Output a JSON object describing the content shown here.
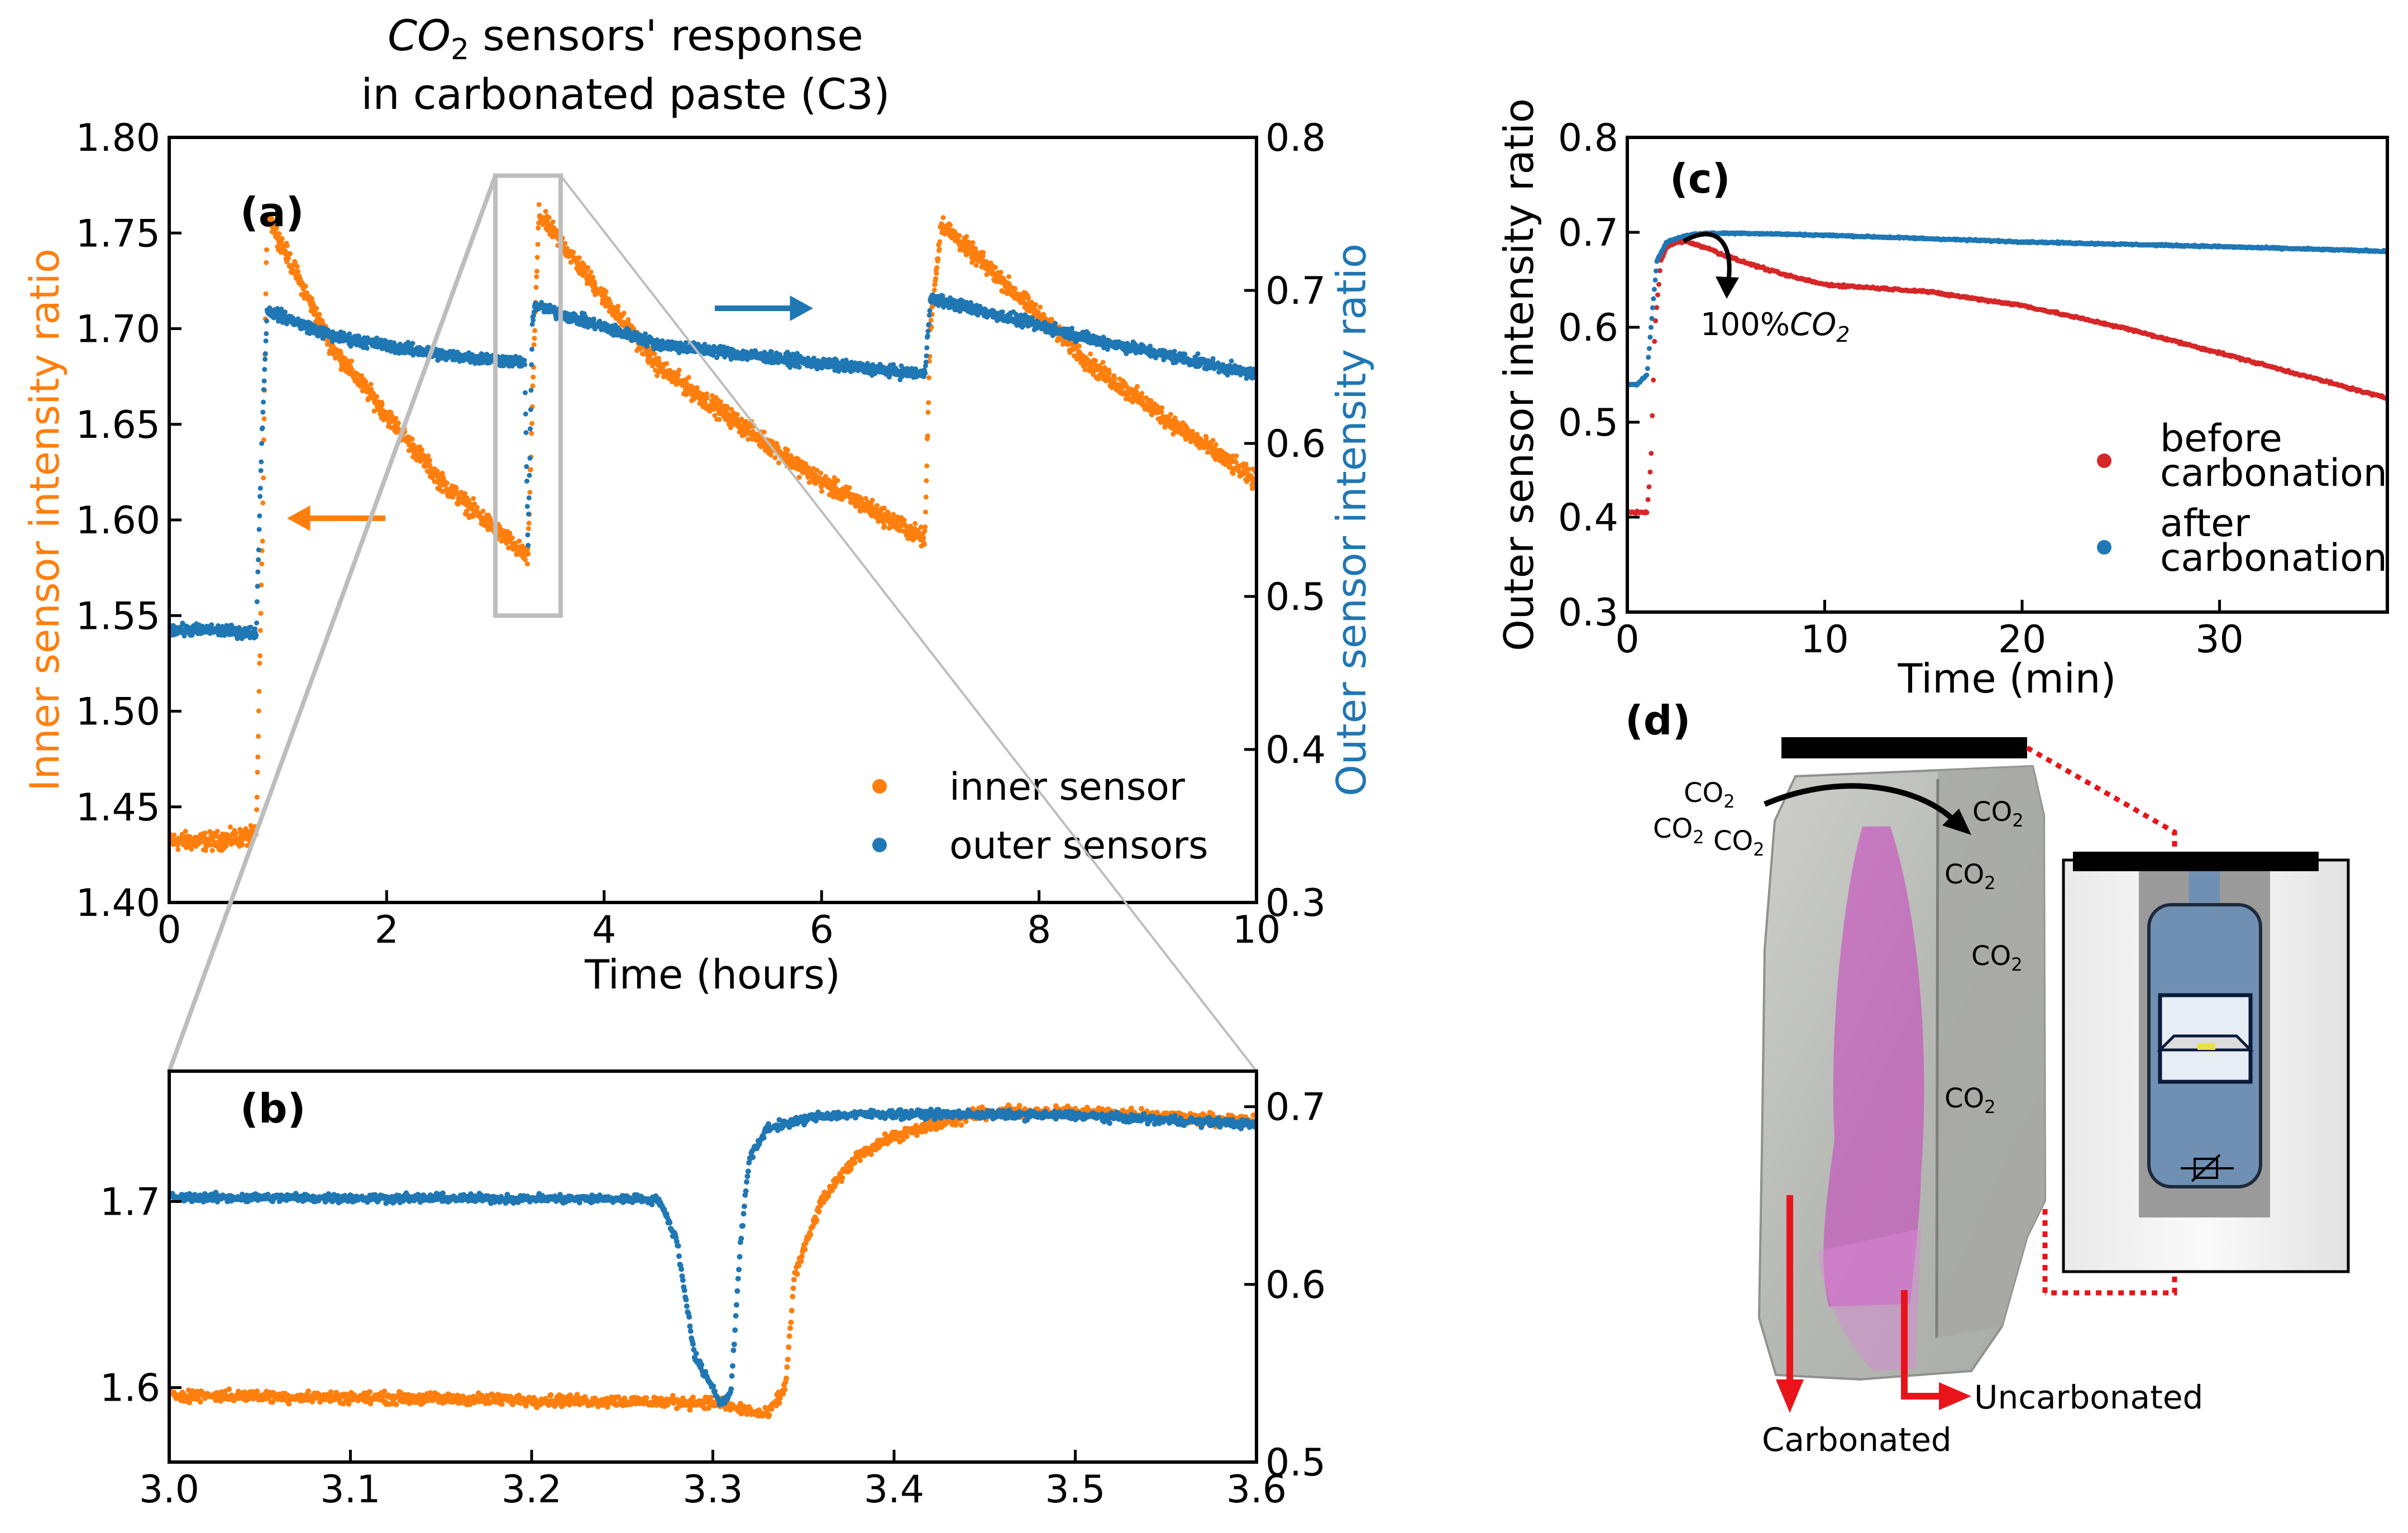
{
  "figure": {
    "title_co2_part1": "CO",
    "title_co2_sub": "2",
    "title_part2": " sensors' response",
    "title_line2": "in carbonated paste (C3)"
  },
  "colors": {
    "inner": "#ff7f0e",
    "outer": "#1f77b4",
    "before": "#d62728",
    "after": "#1f77b4",
    "zoom_box": "#bdbdbd",
    "annot_red": "#e8141a",
    "magenta": "#c83cbf"
  },
  "chart_data": [
    {
      "id": "a",
      "type": "scatter",
      "panel_label": "(a)",
      "xlabel": "Time (hours)",
      "ylabel_left": "Inner sensor intensity ratio",
      "ylabel_right": "Outer sensor intensity ratio",
      "xlim": [
        0,
        10
      ],
      "ylim_left": [
        1.4,
        1.8
      ],
      "ylim_right": [
        0.3,
        0.8
      ],
      "xticks": [
        "0",
        "2",
        "4",
        "6",
        "8",
        "10"
      ],
      "yticks_left": [
        "1.40",
        "1.45",
        "1.50",
        "1.55",
        "1.60",
        "1.65",
        "1.70",
        "1.75",
        "1.80"
      ],
      "yticks_right": [
        "0.3",
        "0.4",
        "0.5",
        "0.6",
        "0.7",
        "0.8"
      ],
      "legend": [
        "inner sensor",
        "outer sensors"
      ],
      "series": [
        {
          "name": "inner sensor",
          "axis": "left",
          "x": [
            0,
            0.4,
            0.8,
            0.86,
            0.9,
            1.5,
            2.5,
            3.3,
            3.35,
            3.4,
            4.5,
            6.0,
            6.95,
            7.0,
            7.1,
            8.5,
            10
          ],
          "y": [
            1.432,
            1.432,
            1.435,
            1.6,
            1.76,
            1.69,
            1.62,
            1.58,
            1.68,
            1.76,
            1.68,
            1.62,
            1.59,
            1.7,
            1.755,
            1.68,
            1.62
          ]
        },
        {
          "name": "outer sensors",
          "axis": "right",
          "x": [
            0,
            0.4,
            0.8,
            0.85,
            0.9,
            1.5,
            2.5,
            3.27,
            3.3,
            3.34,
            3.36,
            4.5,
            6.0,
            6.95,
            7.0,
            8.5,
            10
          ],
          "y": [
            0.478,
            0.478,
            0.476,
            0.6,
            0.687,
            0.67,
            0.658,
            0.653,
            0.53,
            0.68,
            0.69,
            0.665,
            0.652,
            0.645,
            0.695,
            0.668,
            0.645
          ]
        }
      ],
      "zoom_box": {
        "x": [
          3.0,
          3.6
        ],
        "y": [
          1.55,
          1.78
        ]
      }
    },
    {
      "id": "b",
      "type": "scatter",
      "panel_label": "(b)",
      "xlim": [
        3.0,
        3.6
      ],
      "ylim_left": [
        1.56,
        1.77
      ],
      "ylim_right": [
        0.5,
        0.72
      ],
      "xticks": [
        "3.0",
        "3.1",
        "3.2",
        "3.3",
        "3.4",
        "3.5",
        "3.6"
      ],
      "yticks_left": [
        "1.6",
        "1.7"
      ],
      "yticks_right": [
        "0.5",
        "0.6",
        "0.7"
      ],
      "series": [
        {
          "name": "inner sensor",
          "axis": "left",
          "x": [
            3.0,
            3.3,
            3.33,
            3.34,
            3.345,
            3.36,
            3.38,
            3.4,
            3.45,
            3.5,
            3.6
          ],
          "y": [
            1.596,
            1.592,
            1.585,
            1.6,
            1.66,
            1.7,
            1.725,
            1.735,
            1.748,
            1.748,
            1.743
          ]
        },
        {
          "name": "outer sensors",
          "axis": "right",
          "x": [
            3.0,
            3.27,
            3.28,
            3.29,
            3.305,
            3.31,
            3.315,
            3.32,
            3.33,
            3.36,
            3.4,
            3.5,
            3.6
          ],
          "y": [
            0.649,
            0.648,
            0.625,
            0.56,
            0.532,
            0.54,
            0.62,
            0.67,
            0.688,
            0.695,
            0.696,
            0.695,
            0.69
          ]
        }
      ]
    },
    {
      "id": "c",
      "type": "scatter",
      "panel_label": "(c)",
      "xlabel": "Time (min)",
      "ylabel": "Outer sensor intensity ratio",
      "xlim": [
        0,
        38.5
      ],
      "ylim": [
        0.3,
        0.8
      ],
      "xticks": [
        "0",
        "10",
        "20",
        "30"
      ],
      "yticks": [
        "0.3",
        "0.4",
        "0.5",
        "0.6",
        "0.7",
        "0.8"
      ],
      "legend": [
        "before\ncarbonation",
        "after\ncarbonation"
      ],
      "legend_before_line1": "before",
      "legend_before_line2": "carbonation",
      "legend_after_line1": "after",
      "legend_after_line2": "carbonation",
      "annotation_prefix": "100%",
      "annotation_co2": "CO",
      "annotation_sub": "2",
      "series": [
        {
          "name": "before carbonation",
          "x": [
            0,
            1.0,
            1.2,
            1.4,
            1.7,
            2.0,
            2.5,
            3.0,
            4.0,
            5.0,
            6.0,
            8.0,
            10.0,
            15.0,
            20.0,
            25.0,
            30.0,
            35.0,
            38.5
          ],
          "y": [
            0.405,
            0.405,
            0.46,
            0.6,
            0.67,
            0.685,
            0.69,
            0.69,
            0.684,
            0.675,
            0.668,
            0.655,
            0.645,
            0.638,
            0.623,
            0.6,
            0.573,
            0.545,
            0.525
          ]
        },
        {
          "name": "after carbonation",
          "x": [
            0,
            0.5,
            1.0,
            1.2,
            1.5,
            2.0,
            3.0,
            4.0,
            6.0,
            10.0,
            20.0,
            30.0,
            38.5
          ],
          "y": [
            0.54,
            0.54,
            0.55,
            0.6,
            0.67,
            0.69,
            0.697,
            0.699,
            0.699,
            0.697,
            0.69,
            0.685,
            0.68
          ]
        }
      ]
    }
  ],
  "panel_d": {
    "label": "(d)",
    "co2_labels": [
      "CO",
      "CO",
      "CO",
      "CO",
      "CO",
      "CO",
      "CO"
    ],
    "co2_sub": "2",
    "carbonated": "Carbonated",
    "uncarbonated": "Uncarbonated"
  }
}
